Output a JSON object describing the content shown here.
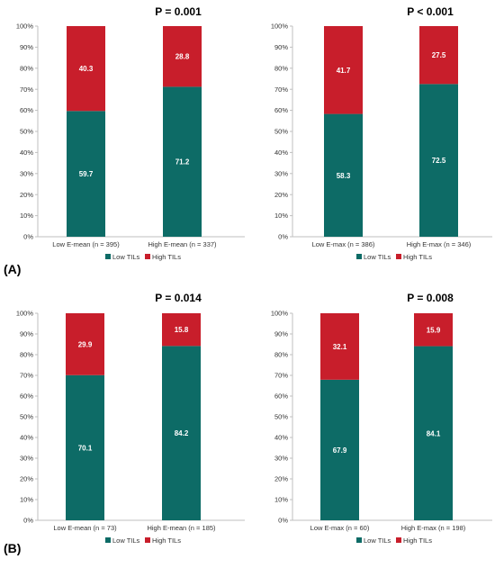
{
  "panel_labels": [
    "(A)",
    "(B)"
  ],
  "colors": {
    "low": "#0d6b66",
    "high": "#c81e2b",
    "axis": "#bfbfbf"
  },
  "chart_data": [
    {
      "type": "bar",
      "stacked": true,
      "percent": true,
      "p_value": "P = 0.001",
      "categories": [
        "Low E-mean (n = 395)",
        "High E-mean (n = 337)"
      ],
      "series": [
        {
          "name": "Low TILs",
          "values": [
            59.7,
            71.2
          ]
        },
        {
          "name": "High TILs",
          "values": [
            40.3,
            28.8
          ]
        }
      ],
      "ylim": [
        0,
        100
      ],
      "yticks": [
        "0%",
        "10%",
        "20%",
        "30%",
        "40%",
        "50%",
        "60%",
        "70%",
        "80%",
        "90%",
        "100%"
      ],
      "legend": "bottom"
    },
    {
      "type": "bar",
      "stacked": true,
      "percent": true,
      "p_value": "P < 0.001",
      "categories": [
        "Low E-max (n = 386)",
        "High E-max (n = 346)"
      ],
      "series": [
        {
          "name": "Low TILs",
          "values": [
            58.3,
            72.5
          ]
        },
        {
          "name": "High TILs",
          "values": [
            41.7,
            27.5
          ]
        }
      ],
      "ylim": [
        0,
        100
      ],
      "yticks": [
        "0%",
        "10%",
        "20%",
        "30%",
        "40%",
        "50%",
        "60%",
        "70%",
        "80%",
        "90%",
        "100%"
      ],
      "legend": "bottom"
    },
    {
      "type": "bar",
      "stacked": true,
      "percent": true,
      "p_value": "P = 0.014",
      "categories": [
        "Low E-mean (n = 73)",
        "High E-mean (n = 185)"
      ],
      "series": [
        {
          "name": "Low TILs",
          "values": [
            70.1,
            84.2
          ]
        },
        {
          "name": "High TILs",
          "values": [
            29.9,
            15.8
          ]
        }
      ],
      "ylim": [
        0,
        100
      ],
      "yticks": [
        "0%",
        "10%",
        "20%",
        "30%",
        "40%",
        "50%",
        "60%",
        "70%",
        "80%",
        "90%",
        "100%"
      ],
      "legend": "bottom"
    },
    {
      "type": "bar",
      "stacked": true,
      "percent": true,
      "p_value": "P = 0.008",
      "categories": [
        "Low E-max (n = 60)",
        "High E-max (n = 198)"
      ],
      "series": [
        {
          "name": "Low TILs",
          "values": [
            67.9,
            84.1
          ]
        },
        {
          "name": "High TILs",
          "values": [
            32.1,
            15.9
          ]
        }
      ],
      "ylim": [
        0,
        100
      ],
      "yticks": [
        "0%",
        "10%",
        "20%",
        "30%",
        "40%",
        "50%",
        "60%",
        "70%",
        "80%",
        "90%",
        "100%"
      ],
      "legend": "bottom"
    }
  ]
}
